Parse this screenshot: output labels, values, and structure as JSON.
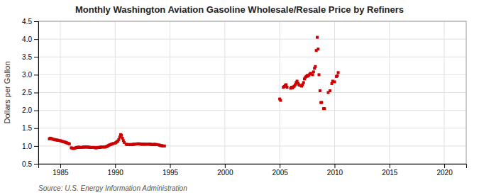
{
  "chart_data": {
    "type": "scatter",
    "title": "Monthly Washington Aviation Gasoline Wholesale/Resale Price by Refiners",
    "ylabel": "Dollars per Gallon",
    "source": "Source: U.S. Energy Information Administration",
    "color": "#cc0000",
    "marker": "square",
    "grid": true,
    "xlim": [
      1983,
      2022
    ],
    "ylim": [
      0.5,
      4.5
    ],
    "xticks": [
      1985,
      1990,
      1995,
      2000,
      2005,
      2010,
      2015,
      2020
    ],
    "yticks": [
      0.5,
      {
        "value": 1.0,
        "label": "1.0"
      },
      1.5,
      {
        "value": 2.0,
        "label": "2.0"
      },
      2.5,
      {
        "value": 3.0,
        "label": "3.0"
      },
      3.5,
      {
        "value": 4.0,
        "label": "4.0"
      },
      4.5
    ],
    "x": [
      1984.0,
      1984.08,
      1984.17,
      1984.25,
      1984.33,
      1984.42,
      1984.5,
      1984.58,
      1984.67,
      1984.75,
      1984.83,
      1985.0,
      1985.08,
      1985.17,
      1985.25,
      1985.33,
      1985.42,
      1985.5,
      1985.58,
      1985.67,
      1985.75,
      1985.83,
      1986.0,
      1986.08,
      1986.17,
      1986.25,
      1986.33,
      1986.42,
      1986.5,
      1986.58,
      1986.67,
      1986.75,
      1986.83,
      1987.0,
      1987.08,
      1987.17,
      1987.25,
      1987.33,
      1987.42,
      1987.5,
      1987.58,
      1987.67,
      1987.75,
      1987.83,
      1988.0,
      1988.08,
      1988.17,
      1988.25,
      1988.33,
      1988.42,
      1988.5,
      1988.58,
      1988.67,
      1988.75,
      1988.83,
      1989.0,
      1989.08,
      1989.17,
      1989.25,
      1989.33,
      1989.42,
      1989.5,
      1989.58,
      1989.67,
      1989.75,
      1989.83,
      1990.0,
      1990.08,
      1990.17,
      1990.25,
      1990.33,
      1990.42,
      1990.5,
      1990.58,
      1990.67,
      1990.75,
      1990.83,
      1991.0,
      1991.08,
      1991.17,
      1991.25,
      1991.33,
      1991.42,
      1991.5,
      1991.58,
      1991.67,
      1991.75,
      1991.83,
      1992.0,
      1992.08,
      1992.17,
      1992.25,
      1992.33,
      1992.42,
      1992.5,
      1992.58,
      1992.67,
      1992.75,
      1992.83,
      1993.0,
      1993.08,
      1993.17,
      1993.25,
      1993.33,
      1993.42,
      1993.5,
      1993.58,
      1993.67,
      1993.75,
      1993.83,
      1994.0,
      1994.08,
      1994.17,
      1994.25,
      1994.33,
      1994.42,
      1994.5,
      2005.0,
      2005.08,
      2005.33,
      2005.42,
      2005.5,
      2005.58,
      2005.67,
      2006.0,
      2006.08,
      2006.17,
      2006.25,
      2006.33,
      2006.42,
      2006.5,
      2006.58,
      2006.67,
      2006.75,
      2006.83,
      2007.0,
      2007.08,
      2007.17,
      2007.25,
      2007.33,
      2007.42,
      2007.5,
      2007.58,
      2007.67,
      2007.75,
      2007.83,
      2008.0,
      2008.08,
      2008.17,
      2008.25,
      2008.33,
      2008.42,
      2008.5,
      2008.58,
      2008.67,
      2008.75,
      2008.83,
      2009.0,
      2009.08,
      2009.42,
      2009.58,
      2009.75,
      2009.83,
      2010.0,
      2010.17,
      2010.25,
      2010.33
    ],
    "values": [
      1.2,
      1.22,
      1.21,
      1.2,
      1.19,
      1.18,
      1.18,
      1.17,
      1.17,
      1.16,
      1.16,
      1.15,
      1.14,
      1.13,
      1.12,
      1.12,
      1.11,
      1.1,
      1.09,
      1.08,
      1.07,
      1.06,
      0.95,
      0.94,
      0.93,
      0.93,
      0.94,
      0.95,
      0.96,
      0.96,
      0.97,
      0.96,
      0.96,
      0.96,
      0.97,
      0.97,
      0.97,
      0.97,
      0.97,
      0.97,
      0.97,
      0.96,
      0.96,
      0.96,
      0.96,
      0.96,
      0.95,
      0.95,
      0.95,
      0.96,
      0.96,
      0.96,
      0.97,
      0.97,
      0.97,
      0.97,
      0.97,
      0.98,
      0.99,
      1.0,
      1.02,
      1.03,
      1.04,
      1.05,
      1.06,
      1.07,
      1.08,
      1.1,
      1.12,
      1.14,
      1.18,
      1.25,
      1.32,
      1.3,
      1.22,
      1.15,
      1.1,
      1.05,
      1.04,
      1.04,
      1.04,
      1.04,
      1.04,
      1.04,
      1.04,
      1.05,
      1.05,
      1.05,
      1.06,
      1.06,
      1.06,
      1.06,
      1.05,
      1.05,
      1.05,
      1.05,
      1.05,
      1.05,
      1.05,
      1.05,
      1.05,
      1.05,
      1.05,
      1.04,
      1.04,
      1.04,
      1.05,
      1.04,
      1.04,
      1.04,
      1.03,
      1.02,
      1.01,
      1.01,
      1.0,
      1.0,
      1.0,
      2.32,
      2.28,
      2.65,
      2.67,
      2.7,
      2.72,
      2.65,
      2.62,
      2.65,
      2.63,
      2.66,
      2.68,
      2.72,
      2.78,
      2.82,
      2.76,
      2.72,
      2.7,
      2.68,
      2.72,
      2.78,
      2.88,
      2.92,
      2.95,
      2.98,
      2.96,
      2.99,
      3.02,
      3.04,
      3.0,
      3.08,
      3.18,
      3.23,
      3.68,
      4.05,
      3.72,
      3.0,
      2.55,
      2.22,
      2.22,
      2.05,
      2.05,
      2.5,
      2.55,
      2.75,
      2.82,
      2.8,
      2.95,
      2.97,
      3.06
    ]
  }
}
